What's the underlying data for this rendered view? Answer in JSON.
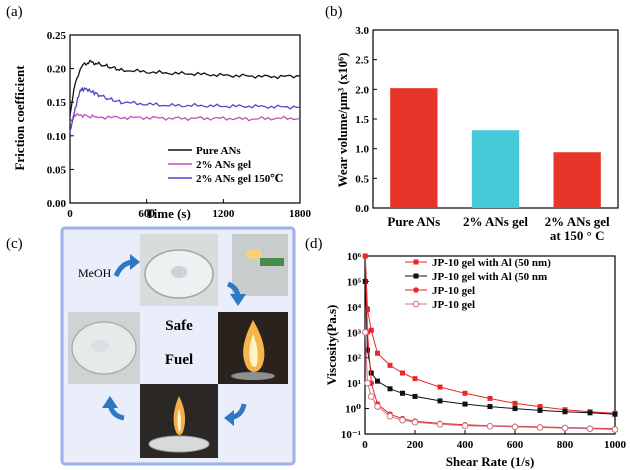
{
  "panel_labels": [
    "(a)",
    "(b)",
    "(c)",
    "(d)"
  ],
  "colors": {
    "black": "#111111",
    "magenta": "#c050c0",
    "blue": "#4a4ac8",
    "red_bar": "#e8352c",
    "cyan_bar": "#45c8d8",
    "red_line": "#e8282a",
    "bluebox_bg": "#e9eefa",
    "bluebox_border": "#9fb0e6",
    "arrow": "#2f78c4"
  },
  "chart_data": [
    {
      "type": "line",
      "panel": "(a)",
      "xlabel": "Time (s)",
      "ylabel": "Friction coefficient",
      "xlim": [
        0,
        1800
      ],
      "ylim": [
        0,
        0.25
      ],
      "xticks": [
        "0",
        "600",
        "1200",
        "1800"
      ],
      "yticks": [
        "0.00",
        "0.05",
        "0.10",
        "0.15",
        "0.20",
        "0.25"
      ],
      "legend_position": "bottom-right",
      "series": [
        {
          "name": "Pure  ANs",
          "color": "#111111",
          "x": [
            0,
            40,
            100,
            150,
            200,
            300,
            400,
            600,
            800,
            1000,
            1200,
            1400,
            1600,
            1800
          ],
          "y": [
            0.13,
            0.18,
            0.205,
            0.21,
            0.208,
            0.203,
            0.198,
            0.195,
            0.193,
            0.192,
            0.19,
            0.189,
            0.188,
            0.189
          ]
        },
        {
          "name": "2% ANs gel",
          "color": "#c050c0",
          "x": [
            0,
            40,
            100,
            200,
            400,
            600,
            800,
            1000,
            1200,
            1400,
            1600,
            1800
          ],
          "y": [
            0.12,
            0.13,
            0.13,
            0.128,
            0.127,
            0.127,
            0.126,
            0.126,
            0.126,
            0.125,
            0.126,
            0.126
          ]
        },
        {
          "name": "2% ANs gel 150℃",
          "color": "#4a4ac8",
          "x": [
            0,
            40,
            80,
            120,
            200,
            300,
            400,
            600,
            800,
            1000,
            1200,
            1400,
            1600,
            1800
          ],
          "y": [
            0.105,
            0.14,
            0.168,
            0.17,
            0.163,
            0.155,
            0.15,
            0.147,
            0.145,
            0.145,
            0.144,
            0.144,
            0.143,
            0.143
          ]
        }
      ]
    },
    {
      "type": "bar",
      "panel": "(b)",
      "ylabel": "Wear volume/μm³ (x10⁶)",
      "ylim": [
        0,
        3.0
      ],
      "yticks": [
        "0.0",
        "0.5",
        "1.0",
        "1.5",
        "2.0",
        "2.5",
        "3.0"
      ],
      "categories": [
        "Pure ANs",
        "2% ANs gel",
        "2% ANs gel\nat 150 ° C"
      ],
      "values": [
        2.02,
        1.31,
        0.94
      ],
      "bar_colors": [
        "#e8352c",
        "#45c8d8",
        "#e8352c"
      ]
    },
    {
      "type": "line",
      "panel": "(d)",
      "xlabel": "Shear Rate (1/s)",
      "ylabel": "Viscosity(Pa.s)",
      "yscale": "log",
      "xlim": [
        0,
        1000
      ],
      "ylim": [
        0.1,
        1000000
      ],
      "xticks": [
        "0",
        "200",
        "400",
        "600",
        "800",
        "1000"
      ],
      "yticks": [
        "10⁻¹",
        "10⁰",
        "10¹",
        "10²",
        "10³",
        "10⁴",
        "10⁵",
        "10⁶"
      ],
      "legend_position": "top-right",
      "series": [
        {
          "name": "JP-10 gel with Al (50 nm)",
          "color": "#e8282a",
          "marker": "square-filled",
          "x": [
            1,
            10,
            25,
            50,
            100,
            150,
            200,
            300,
            400,
            500,
            600,
            700,
            800,
            900,
            1000
          ],
          "y": [
            1000000,
            8000,
            1200,
            150,
            50,
            25,
            15,
            7,
            4,
            2.5,
            1.6,
            1.2,
            0.9,
            0.75,
            0.65
          ]
        },
        {
          "name": "JP-10 gel with Al (50 nm",
          "color": "#111111",
          "marker": "square-filled",
          "x": [
            1,
            10,
            25,
            50,
            100,
            150,
            200,
            300,
            400,
            500,
            600,
            700,
            800,
            900,
            1000
          ],
          "y": [
            100000,
            200,
            25,
            12,
            6,
            4,
            3,
            2,
            1.5,
            1.2,
            1.0,
            0.85,
            0.75,
            0.68,
            0.6
          ]
        },
        {
          "name": "JP-10 gel",
          "color": "#e8282a",
          "marker": "circle-filled",
          "x": [
            1,
            10,
            25,
            50,
            100,
            150,
            200,
            300,
            400,
            500,
            600,
            700,
            800,
            900,
            1000
          ],
          "y": [
            1000000,
            1000,
            10,
            1.5,
            0.6,
            0.4,
            0.32,
            0.26,
            0.23,
            0.21,
            0.2,
            0.19,
            0.18,
            0.17,
            0.16
          ]
        },
        {
          "name": "JP-10 gel",
          "color": "#d07080",
          "marker": "circle-open",
          "x": [
            1,
            10,
            25,
            50,
            100,
            150,
            200,
            300,
            400,
            500,
            600,
            700,
            800,
            900,
            1000
          ],
          "y": [
            1000,
            10,
            3,
            1.2,
            0.5,
            0.35,
            0.29,
            0.24,
            0.21,
            0.2,
            0.19,
            0.18,
            0.17,
            0.16,
            0.15
          ]
        }
      ]
    }
  ],
  "panel_c": {
    "meoh_label": "MeOH",
    "center_line1": "Safe",
    "center_line2": "Fuel"
  }
}
